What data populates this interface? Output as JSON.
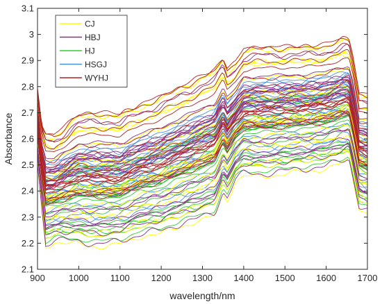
{
  "chart_data": {
    "type": "line",
    "title": "",
    "xlabel": "wavelength/nm",
    "ylabel": "Absorbance",
    "xlim": [
      900,
      1700
    ],
    "ylim": [
      2.1,
      3.1
    ],
    "grid": false,
    "legend_position": "top-left",
    "x_ticks": [
      900,
      1000,
      1100,
      1200,
      1300,
      1400,
      1500,
      1600,
      1700
    ],
    "y_ticks": [
      2.1,
      2.2,
      2.3,
      2.4,
      2.5,
      2.6,
      2.7,
      2.8,
      2.9,
      3.0,
      3.1
    ],
    "x_tick_labels": [
      "900",
      "1000",
      "1100",
      "1200",
      "1300",
      "1400",
      "1500",
      "1600",
      "1700"
    ],
    "y_tick_labels": [
      "2.1",
      "2.2",
      "2.3",
      "2.4",
      "2.5",
      "2.6",
      "2.7",
      "2.8",
      "2.9",
      "3",
      "3.1"
    ],
    "series": [
      {
        "name": "CJ",
        "color": "#FFFF00"
      },
      {
        "name": "HBJ",
        "color": "#8B2F8E"
      },
      {
        "name": "HJ",
        "color": "#33CC33"
      },
      {
        "name": "HSGJ",
        "color": "#4A90E2"
      },
      {
        "name": "WYHJ",
        "color": "#B22222"
      }
    ],
    "representative_spectra": {
      "x": [
        900,
        910,
        920,
        940,
        1000,
        1050,
        1100,
        1150,
        1200,
        1250,
        1300,
        1330,
        1350,
        1360,
        1380,
        1400,
        1450,
        1500,
        1550,
        1600,
        1640,
        1655,
        1665,
        1680,
        1700
      ],
      "upper_envelope_y": [
        2.79,
        2.66,
        2.63,
        2.62,
        2.7,
        2.71,
        2.7,
        2.74,
        2.77,
        2.81,
        2.85,
        2.87,
        2.92,
        2.88,
        2.9,
        2.95,
        2.96,
        2.96,
        2.96,
        2.97,
        2.99,
        2.99,
        2.93,
        2.78,
        2.78
      ],
      "lower_envelope_y": [
        2.5,
        2.33,
        2.18,
        2.2,
        2.19,
        2.18,
        2.19,
        2.22,
        2.23,
        2.26,
        2.28,
        2.3,
        2.38,
        2.36,
        2.43,
        2.45,
        2.45,
        2.46,
        2.47,
        2.48,
        2.5,
        2.51,
        2.44,
        2.33,
        2.31
      ]
    },
    "notes_curve_count_per_series": 20
  }
}
